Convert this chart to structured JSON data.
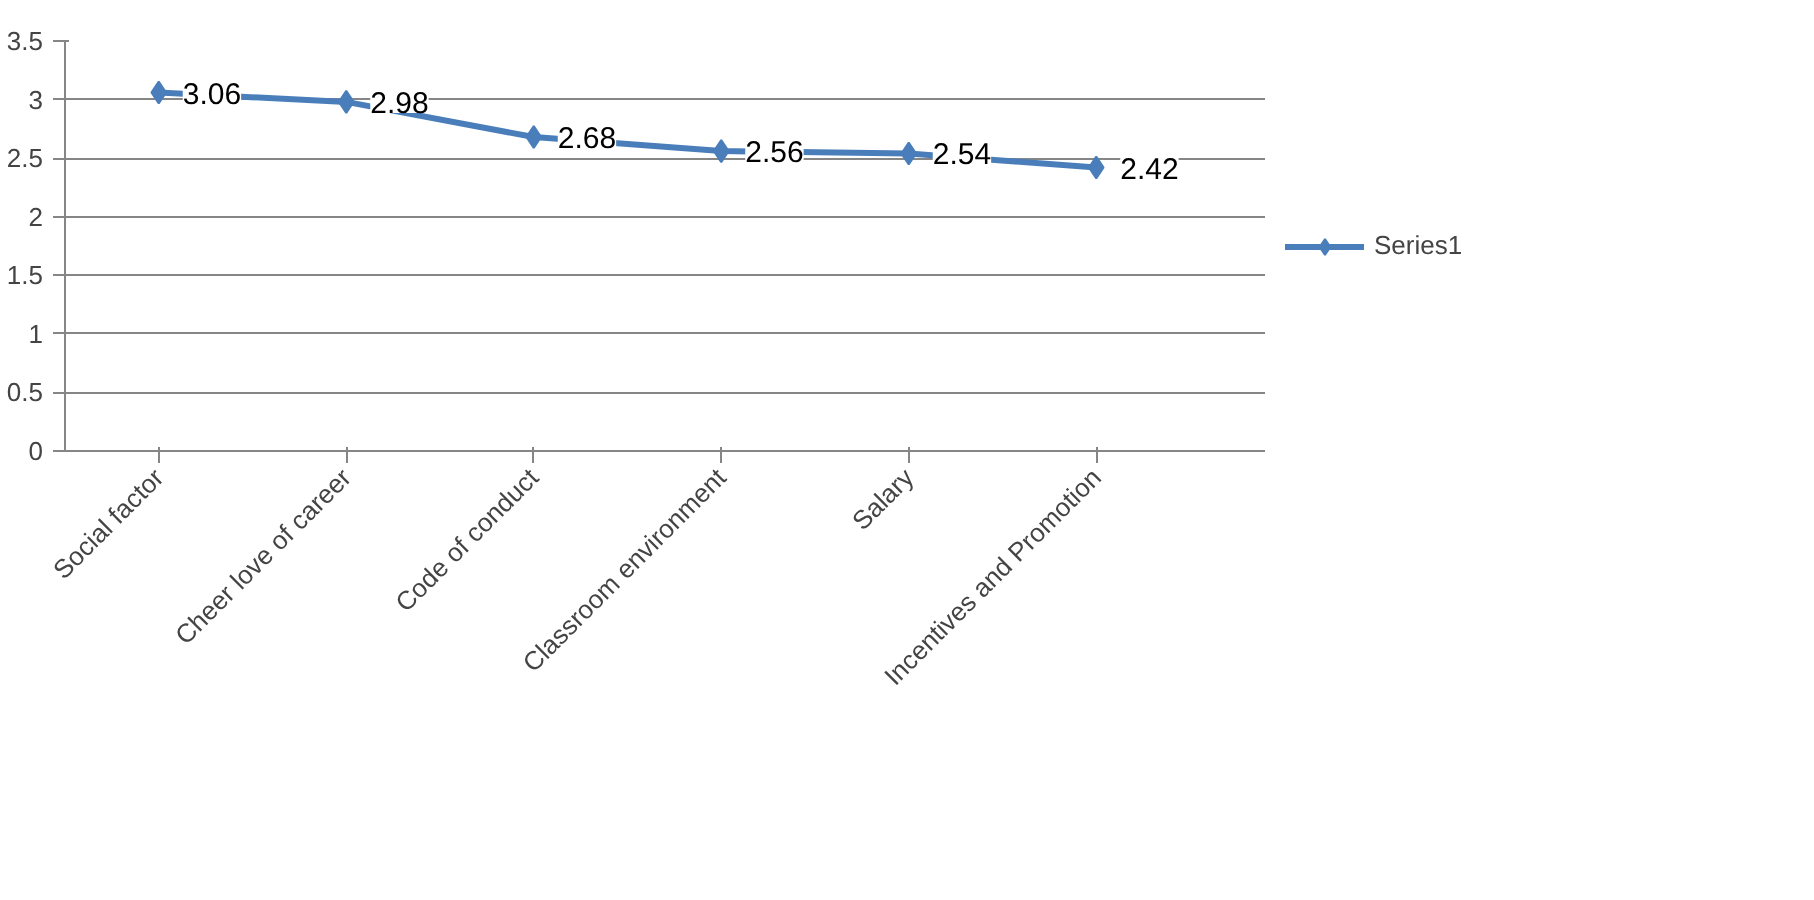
{
  "chart_data": {
    "type": "line",
    "categories": [
      "Social factor",
      "Cheer love of career",
      "Code of conduct",
      "Classroom environment",
      "Salary",
      "Incentives and Promotion"
    ],
    "series": [
      {
        "name": "Series1",
        "color": "#4a7ebb",
        "values": [
          3.06,
          2.98,
          2.68,
          2.56,
          2.54,
          2.42
        ]
      }
    ],
    "ylim": [
      0,
      3.5
    ],
    "yticks": [
      0,
      0.5,
      1,
      1.5,
      2,
      2.5,
      3,
      3.5
    ],
    "grid": "y",
    "legend": "right",
    "marker": "diamond",
    "data_labels": true
  }
}
